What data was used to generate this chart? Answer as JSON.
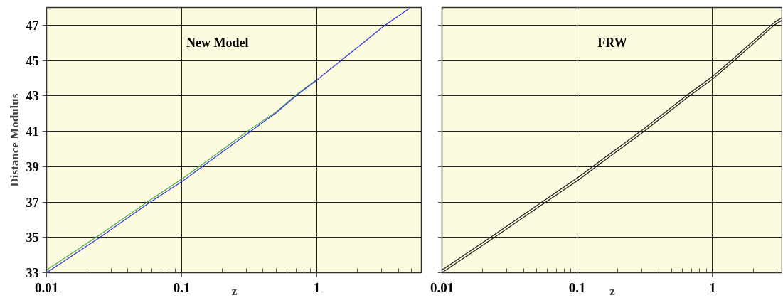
{
  "chart_data": [
    {
      "type": "line",
      "title": "New Model",
      "xlabel": "z",
      "ylabel": "Distance Modulus",
      "log": "x",
      "grid": true,
      "xlim": [
        0.01,
        6.0
      ],
      "xticks": [
        0.01,
        0.1,
        1
      ],
      "ylim": [
        33,
        48
      ],
      "yticks": [
        33,
        35,
        37,
        39,
        41,
        43,
        45,
        47
      ],
      "series": [
        {
          "color": "#4caf50",
          "x": [
            0.01,
            0.0248,
            0.0587,
            0.1,
            0.142,
            0.3,
            0.5,
            0.7,
            1.0
          ],
          "values": [
            33.15,
            35.15,
            37.12,
            38.3,
            39.12,
            40.95,
            42.1,
            43.05,
            43.93
          ]
        },
        {
          "color": "#3a3ae0",
          "x": [
            0.01,
            0.0248,
            0.0587,
            0.1,
            0.142,
            0.324,
            0.5,
            0.7,
            1.0,
            1.51,
            2.0,
            3.2,
            4.83
          ],
          "values": [
            33.0,
            35.0,
            37.0,
            38.15,
            39.0,
            41.0,
            42.05,
            43.0,
            43.9,
            45.0,
            45.75,
            47.0,
            47.95
          ]
        }
      ]
    },
    {
      "type": "line",
      "title": "FRW",
      "xlabel": "z",
      "log": "x",
      "grid": true,
      "tick_labels": "x",
      "xlim": [
        0.01,
        3.3
      ],
      "xticks": [
        0.01,
        0.1,
        1
      ],
      "ylim": [
        33,
        48
      ],
      "yticks": [
        33,
        35,
        37,
        39,
        41,
        43,
        45,
        47
      ],
      "series": [
        {
          "color": "#222222",
          "x": [
            0.01,
            0.0244,
            0.0587,
            0.1,
            0.138,
            0.313,
            0.676,
            1.0,
            1.45,
            2.0,
            2.86,
            3.3
          ],
          "values": [
            33.15,
            35.15,
            37.15,
            38.36,
            39.15,
            41.15,
            43.15,
            44.1,
            45.15,
            46.1,
            47.15,
            47.45
          ]
        },
        {
          "color": "#222222",
          "x": [
            0.01,
            0.0244,
            0.0587,
            0.1,
            0.138,
            0.313,
            0.676,
            1.0,
            1.45,
            2.0,
            2.86,
            3.3
          ],
          "values": [
            33.0,
            35.0,
            37.0,
            38.2,
            39.0,
            41.0,
            43.0,
            43.95,
            45.0,
            45.95,
            47.0,
            47.3
          ]
        }
      ]
    }
  ]
}
